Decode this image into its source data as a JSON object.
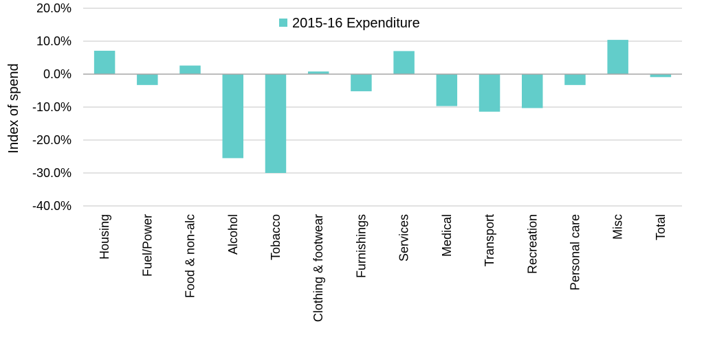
{
  "chart_data": {
    "type": "bar",
    "title": "",
    "xlabel": "",
    "ylabel": "Index of spend",
    "ylim": [
      -40,
      20
    ],
    "ytick_step": 10,
    "ytick_format": "percent_1dp",
    "grid": true,
    "legend_position": "top-center",
    "categories": [
      "Housing",
      "Fuel/Power",
      "Food & non-alc",
      "Alcohol",
      "Tobacco",
      "Clothing & footwear",
      "Furnishings",
      "Services",
      "Medical",
      "Transport",
      "Recreation",
      "Personal care",
      "Misc",
      "Total"
    ],
    "series": [
      {
        "name": "2015-16 Expenditure",
        "color": "#62CDCA",
        "values": [
          7.1,
          -3.3,
          2.6,
          -25.5,
          -30.0,
          0.8,
          -5.2,
          7.0,
          -9.7,
          -11.4,
          -10.3,
          -3.3,
          10.4,
          -0.9
        ]
      }
    ]
  }
}
